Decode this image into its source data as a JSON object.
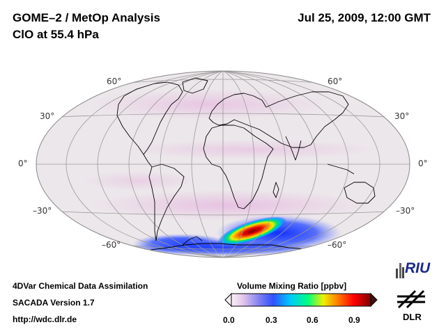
{
  "header": {
    "title": "GOME–2 / MetOp Analysis",
    "subtitle": "ClO at 55.4 hPa",
    "date": "Jul 25, 2009, 12:00 GMT"
  },
  "map": {
    "projection": "Hammer-Aitoff global",
    "lat_labels_left": [
      "60°",
      "30°",
      "0°",
      "–30°",
      "–60°"
    ],
    "lat_labels_right": [
      "60°",
      "30°",
      "0°",
      "–30°",
      "–60°"
    ]
  },
  "footer": {
    "line1": "4DVar Chemical Data Assimilation",
    "line2": "SACADA Version 1.7",
    "line3": "http://wdc.dlr.de"
  },
  "colorbar": {
    "title": "Volume Mixing Ratio [ppbv]",
    "ticks": [
      "0.0",
      "0.3",
      "0.6",
      "0.9"
    ],
    "colors": [
      "#f8f2f6",
      "#c0c0f0",
      "#3050ff",
      "#00c8ff",
      "#00ff80",
      "#f0f000",
      "#ff8000",
      "#ff0000",
      "#800000"
    ]
  },
  "logos": {
    "riu": "RIU",
    "dlr": "DLR"
  }
}
